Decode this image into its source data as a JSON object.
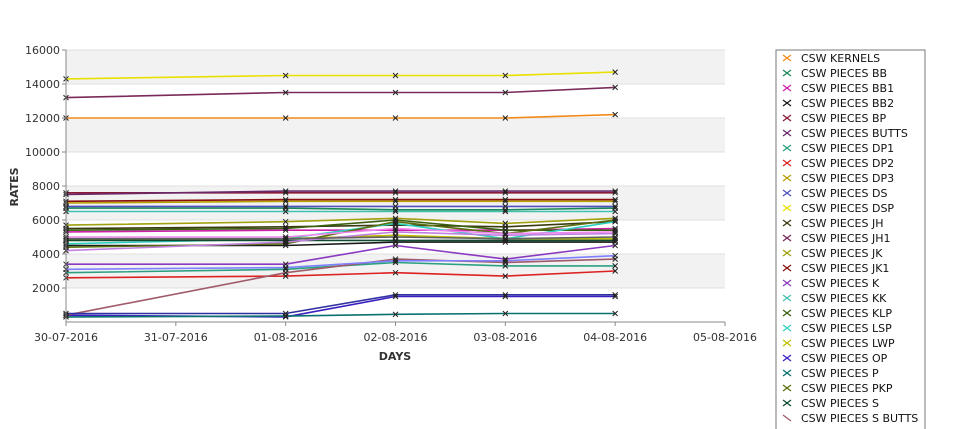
{
  "chart_data": {
    "type": "line",
    "title": "",
    "xlabel": "DAYS",
    "ylabel": "RATES",
    "x_ticks": [
      "30-07-2016",
      "31-07-2016",
      "01-08-2016",
      "02-08-2016",
      "03-08-2016",
      "04-08-2016",
      "05-08-2016"
    ],
    "y_ticks": [
      "2000",
      "4000",
      "6000",
      "8000",
      "10000",
      "12000",
      "14000",
      "16000"
    ],
    "ylim": [
      0,
      16000
    ],
    "grid": "alternating horizontal bands",
    "legend_position": "right",
    "x": [
      "30-07-2016",
      "01-08-2016",
      "02-08-2016",
      "03-08-2016",
      "04-08-2016"
    ],
    "series": [
      {
        "name": "CSW KERNELS",
        "color": "#f28a1a",
        "values": [
          12000,
          12000,
          12000,
          12000,
          12200
        ]
      },
      {
        "name": "CSW PIECES BB",
        "color": "#1a8a5a",
        "values": [
          6700,
          6700,
          6600,
          6600,
          6700
        ]
      },
      {
        "name": "CSW PIECES BB1",
        "color": "#cc22aa",
        "values": [
          5300,
          5400,
          5400,
          5400,
          5500
        ]
      },
      {
        "name": "CSW PIECES BB2",
        "color": "#1a1a1a",
        "values": [
          4500,
          4500,
          4700,
          4700,
          4700
        ]
      },
      {
        "name": "CSW PIECES BP",
        "color": "#8a1a3a",
        "values": [
          7600,
          7600,
          7600,
          7600,
          7600
        ]
      },
      {
        "name": "CSW PIECES BUTTS",
        "color": "#6a2a6a",
        "values": [
          7500,
          7700,
          7700,
          7700,
          7700
        ]
      },
      {
        "name": "CSW PIECES DP1",
        "color": "#2aa080",
        "values": [
          2900,
          3100,
          3500,
          3300,
          3300
        ]
      },
      {
        "name": "CSW PIECES DP2",
        "color": "#dd2222",
        "values": [
          2600,
          2700,
          2900,
          2700,
          3000
        ]
      },
      {
        "name": "CSW PIECES DP3",
        "color": "#b8a000",
        "values": [
          7000,
          7100,
          7100,
          7100,
          7100
        ]
      },
      {
        "name": "CSW PIECES DS",
        "color": "#5050c0",
        "values": [
          6800,
          6800,
          6800,
          6800,
          6800
        ]
      },
      {
        "name": "CSW PIECES DSP",
        "color": "#e8e000",
        "values": [
          14300,
          14500,
          14500,
          14500,
          14700
        ]
      },
      {
        "name": "CSW PIECES JH",
        "color": "#3a3a10",
        "values": [
          5500,
          5600,
          5700,
          5600,
          5900
        ]
      },
      {
        "name": "CSW PIECES JH1",
        "color": "#7a2a5a",
        "values": [
          13200,
          13500,
          13500,
          13500,
          13800
        ]
      },
      {
        "name": "CSW PIECES JK",
        "color": "#a0a010",
        "values": [
          5700,
          5900,
          6100,
          5800,
          6100
        ]
      },
      {
        "name": "CSW PIECES JK1",
        "color": "#8a1010",
        "values": [
          7100,
          7200,
          7200,
          7200,
          7200
        ]
      },
      {
        "name": "CSW PIECES K",
        "color": "#8a3ac0",
        "values": [
          3400,
          3400,
          4500,
          3700,
          4500
        ]
      },
      {
        "name": "CSW PIECES KK",
        "color": "#40c0b0",
        "values": [
          6500,
          6500,
          6500,
          6500,
          6500
        ]
      },
      {
        "name": "CSW PIECES KLP",
        "color": "#3a6010",
        "values": [
          5400,
          5500,
          6000,
          5400,
          5400
        ]
      },
      {
        "name": "CSW PIECES LSP",
        "color": "#30d0c0",
        "values": [
          4600,
          4900,
          5800,
          4900,
          5900
        ]
      },
      {
        "name": "CSW PIECES LWP",
        "color": "#c0c000",
        "values": [
          4800,
          4900,
          5100,
          4900,
          4900
        ]
      },
      {
        "name": "CSW PIECES OP",
        "color": "#3a20c0",
        "values": [
          400,
          300,
          1500,
          1500,
          1500
        ]
      },
      {
        "name": "CSW PIECES P",
        "color": "#0a7070",
        "values": [
          300,
          350,
          450,
          500,
          500
        ]
      },
      {
        "name": "CSW PIECES PKP",
        "color": "#5a7010",
        "values": [
          4400,
          4600,
          5900,
          5200,
          6000
        ]
      },
      {
        "name": "CSW PIECES S",
        "color": "#104a30",
        "values": [
          4800,
          4800,
          4800,
          4800,
          4800
        ]
      },
      {
        "name": "",
        "color": "#a05a6a",
        "values": [
          400,
          2900,
          3700,
          3500,
          3700
        ]
      },
      {
        "name": "",
        "color": "#3030a0",
        "values": [
          500,
          500,
          1600,
          1600,
          1600
        ]
      },
      {
        "name": "",
        "color": "#c080e0",
        "values": [
          4200,
          4700,
          5300,
          5100,
          5200
        ]
      },
      {
        "name": "",
        "color": "#ee88ee",
        "values": [
          5000,
          5000,
          5500,
          5200,
          5300
        ]
      },
      {
        "name": "",
        "color": "#8080ff",
        "values": [
          3100,
          3200,
          3600,
          3600,
          3900
        ]
      },
      {
        "name": "",
        "color": "#606060",
        "values": [
          4900,
          4900,
          5000,
          4900,
          5000
        ]
      }
    ],
    "legend_partial_label": "CSW PIECES S BUTTS"
  }
}
